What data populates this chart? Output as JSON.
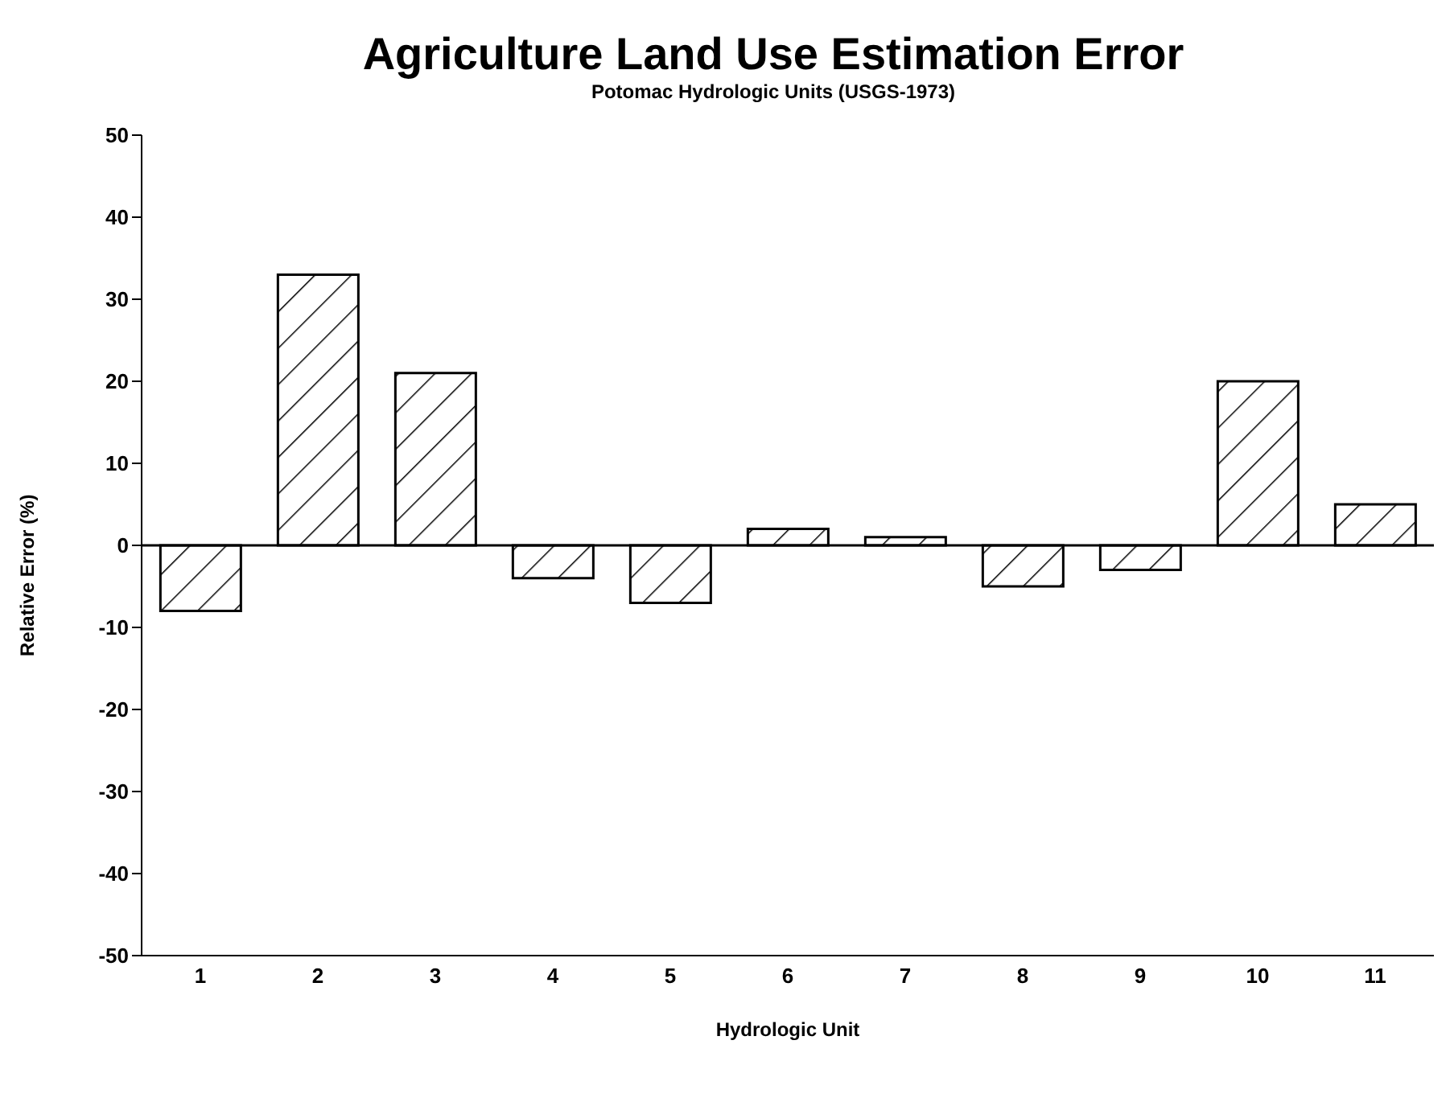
{
  "chart_data": {
    "type": "bar",
    "title": "Agriculture Land Use Estimation Error",
    "subtitle": "Potomac Hydrologic Units (USGS-1973)",
    "xlabel": "Hydrologic Unit",
    "ylabel": "Relative Error (%)",
    "categories": [
      "1",
      "2",
      "3",
      "4",
      "5",
      "6",
      "7",
      "8",
      "9",
      "10",
      "11"
    ],
    "values": [
      -8,
      33,
      21,
      -4,
      -7,
      2,
      1,
      -5,
      -3,
      20,
      5
    ],
    "color": "#000000",
    "ylim": [
      -50,
      50
    ],
    "yticks": [
      -50,
      -40,
      -30,
      -20,
      -10,
      0,
      10,
      20,
      30,
      40,
      50
    ],
    "ref_lines": [
      {
        "axis": "y",
        "value": 0,
        "color": "#000000"
      }
    ],
    "grid": false,
    "legend": false
  }
}
